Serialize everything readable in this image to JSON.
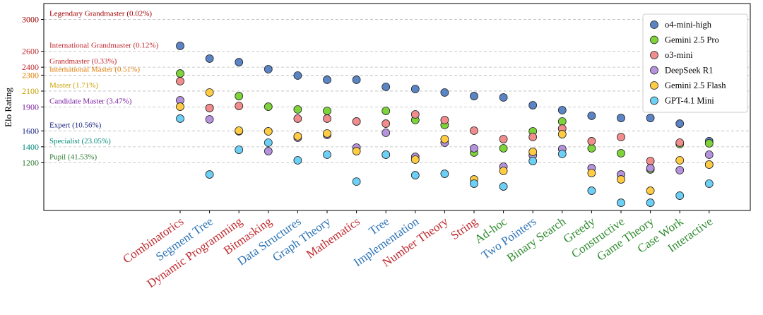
{
  "chart_data": {
    "type": "scatter",
    "y_label": "Elo Rating",
    "categories": [
      "Combinatorics",
      "Segment Tree",
      "Dynamic Programming",
      "Bitmasking",
      "Data Structures",
      "Graph Theory",
      "Mathematics",
      "Tree",
      "Implementation",
      "Number Theory",
      "String",
      "Ad-hoc",
      "Two Pointers",
      "Binary Search",
      "Greedy",
      "Constructive",
      "Game Theory",
      "Case Work",
      "Interactive"
    ],
    "category_colors": [
      "#c0282d",
      "#2a72b5",
      "#c0282d",
      "#c0282d",
      "#2a72b5",
      "#2a72b5",
      "#c0282d",
      "#2a72b5",
      "#2a72b5",
      "#c0282d",
      "#c0282d",
      "#2e8b2e",
      "#2a72b5",
      "#2e8b2e",
      "#2e8b2e",
      "#2e8b2e",
      "#2e8b2e",
      "#2e8b2e",
      "#2e8b2e"
    ],
    "ylim": [
      600,
      3200
    ],
    "yticks": [
      1200,
      1400,
      1600,
      1900,
      2100,
      2300,
      2400,
      2600,
      3000
    ],
    "ranks": [
      {
        "label": "Pupil (41.53%)",
        "color": "#2e7d32"
      },
      {
        "label": "Specialist (23.05%)",
        "color": "#00897b"
      },
      {
        "label": "Expert (10.56%)",
        "color": "#1a237e"
      },
      {
        "label": "Candidate Master (3.47%)",
        "color": "#7b1fa2"
      },
      {
        "label": "Master (1.71%)",
        "color": "#c9a000"
      },
      {
        "label": "International Master (0.51%)",
        "color": "#e07b00"
      },
      {
        "label": "Grandmaster (0.33%)",
        "color": "#c0282d"
      },
      {
        "label": "International Grandmaster (0.12%)",
        "color": "#c0282d"
      },
      {
        "label": "Legendary Grandmaster (0.02%)",
        "color": "#a00000"
      }
    ],
    "grid": true,
    "legend": "upper right",
    "series": [
      {
        "name": "o4-mini-high",
        "color": "#5b84c4",
        "values": [
          2668,
          2508,
          2463,
          2375,
          2295,
          2242,
          2242,
          2153,
          2126,
          2082,
          2037,
          2020,
          1922,
          1860,
          1789,
          1762,
          1762,
          1691,
          1470
        ]
      },
      {
        "name": "Gemini 2.5 Pro",
        "color": "#7ed33a",
        "values": [
          2321,
          1887,
          2037,
          1904,
          1869,
          1851,
          1718,
          1851,
          1736,
          1674,
          1328,
          1381,
          1594,
          1718,
          1381,
          1319,
          1115,
          1434,
          1443
        ]
      },
      {
        "name": "o3-mini",
        "color": "#f08c8c",
        "values": [
          2224,
          1887,
          1913,
          1594,
          1754,
          1754,
          1718,
          1691,
          1807,
          1736,
          1603,
          1496,
          1523,
          1629,
          1470,
          1523,
          1221,
          1452,
          1177
        ]
      },
      {
        "name": "DeepSeek R1",
        "color": "#b593dc",
        "values": [
          1984,
          1745,
          1595,
          1345,
          1514,
          1550,
          1390,
          1576,
          1274,
          1452,
          1381,
          1150,
          1292,
          1372,
          1132,
          1052,
          1132,
          1106,
          1301
        ]
      },
      {
        "name": "Gemini 2.5 Flash",
        "color": "#ffcc44",
        "values": [
          1904,
          2082,
          1603,
          1594,
          1532,
          1567,
          1345,
          1301,
          1239,
          1496,
          990,
          1097,
          1337,
          1558,
          1070,
          990,
          848,
          1230,
          1177
        ]
      },
      {
        "name": "GPT-4.1 Mini",
        "color": "#6ccff6",
        "values": [
          1754,
          1052,
          1363,
          1452,
          1230,
          1301,
          963,
          1301,
          1043,
          1061,
          937,
          901,
          1221,
          1310,
          848,
          697,
          697,
          786,
          937
        ]
      }
    ]
  }
}
